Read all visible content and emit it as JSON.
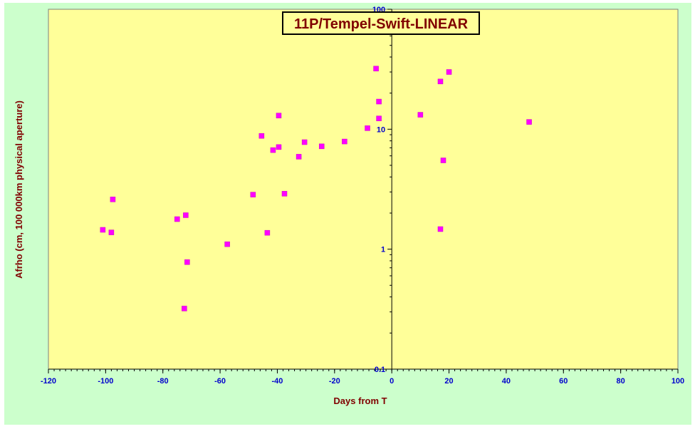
{
  "chart_data": {
    "type": "scatter",
    "title": "11P/Tempel-Swift-LINEAR",
    "xlabel": "Days from T",
    "ylabel": "Afrho (cm, 100 000km physical aperture)",
    "xlim": [
      -120,
      100
    ],
    "ylim": [
      0.1,
      100
    ],
    "yscale": "log",
    "x_ticks": [
      -120,
      -100,
      -80,
      -60,
      -40,
      -20,
      0,
      20,
      40,
      60,
      80,
      100
    ],
    "y_ticks": [
      0.1,
      1,
      10,
      100
    ],
    "x_tick_labels": [
      "-120",
      "-100",
      "-80",
      "-60",
      "-40",
      "-20",
      "0",
      "20",
      "40",
      "60",
      "80",
      "100"
    ],
    "y_tick_labels": [
      "0.1",
      "1",
      "10",
      "100"
    ],
    "grid": false,
    "legend": "none",
    "colors": {
      "plot_background": "#ffff99",
      "outer_background": "#ccffcc",
      "marker": "#ff00ff",
      "tick_labels": "#0000cc",
      "axis_titles": "#800000"
    },
    "series": [
      {
        "points": [
          [
            -101,
            1.45
          ],
          [
            -98,
            1.38
          ],
          [
            -97.5,
            2.6
          ],
          [
            -75,
            1.78
          ],
          [
            -72,
            1.92
          ],
          [
            -71.5,
            0.78
          ],
          [
            -72.5,
            0.32
          ],
          [
            -57.5,
            1.1
          ],
          [
            -48.5,
            2.85
          ],
          [
            -45.5,
            8.8
          ],
          [
            -43.5,
            1.37
          ],
          [
            -41.5,
            6.7
          ],
          [
            -39.5,
            7.1
          ],
          [
            -39.5,
            13.0
          ],
          [
            -37.5,
            2.9
          ],
          [
            -32.5,
            5.9
          ],
          [
            -30.5,
            7.8
          ],
          [
            -24.5,
            7.2
          ],
          [
            -16.5,
            7.9
          ],
          [
            -8.5,
            10.2
          ],
          [
            -5.5,
            32.0
          ],
          [
            -4.5,
            17.0
          ],
          [
            -4.5,
            12.3
          ],
          [
            10,
            13.2
          ],
          [
            17,
            25.0
          ],
          [
            17,
            1.47
          ],
          [
            18,
            5.5
          ],
          [
            20,
            30.0
          ],
          [
            48,
            11.5
          ]
        ]
      }
    ]
  }
}
